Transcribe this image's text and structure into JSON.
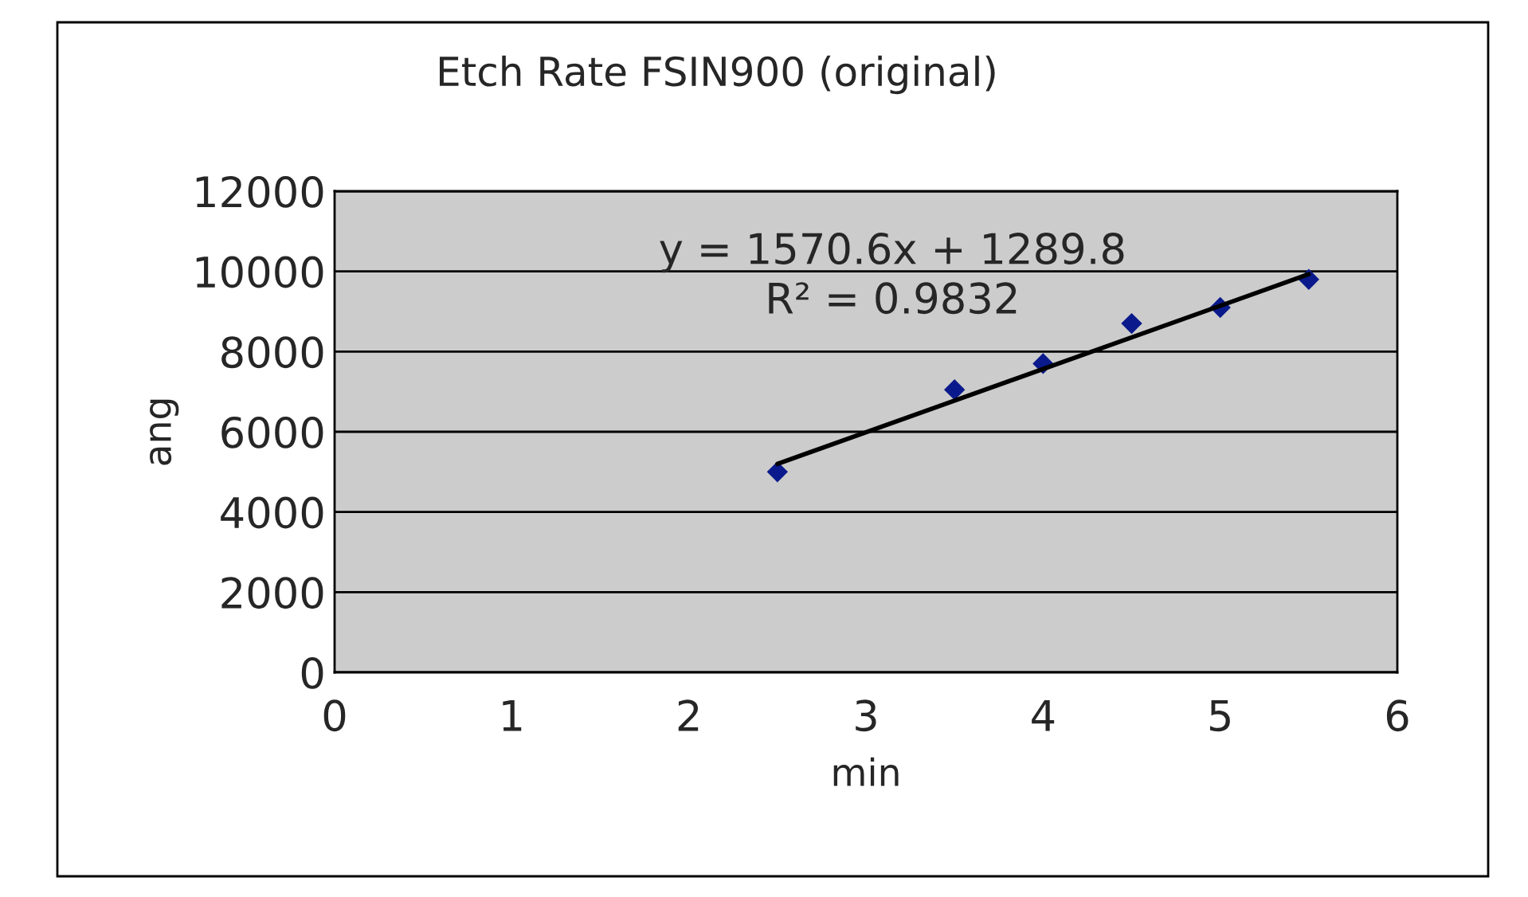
{
  "chart_data": {
    "type": "scatter",
    "title": "Etch Rate FSIN900 (original)",
    "xlabel": "min",
    "ylabel": "ang",
    "x": [
      2.5,
      3.5,
      4,
      4.5,
      5,
      5.5
    ],
    "series": [
      {
        "color": "#0a1a8c",
        "marker": "diamond",
        "values": [
          5000,
          7050,
          7700,
          8700,
          9100,
          9800
        ]
      },
      {
        "type": "line",
        "color": "#000000",
        "marker": "none",
        "line_style": "solid",
        "x": [
          2.5,
          5.5
        ],
        "values": [
          5200,
          9930
        ]
      }
    ],
    "annotations": [
      "y = 1570.6x + 1289.8",
      "R² = 0.9832"
    ],
    "xlim": [
      0,
      6
    ],
    "xticks": [
      0,
      1,
      2,
      3,
      4,
      5,
      6
    ],
    "ylim": [
      0,
      12000
    ],
    "yticks": [
      0,
      2000,
      4000,
      6000,
      8000,
      10000,
      12000
    ],
    "grid": "y",
    "legend": false
  }
}
